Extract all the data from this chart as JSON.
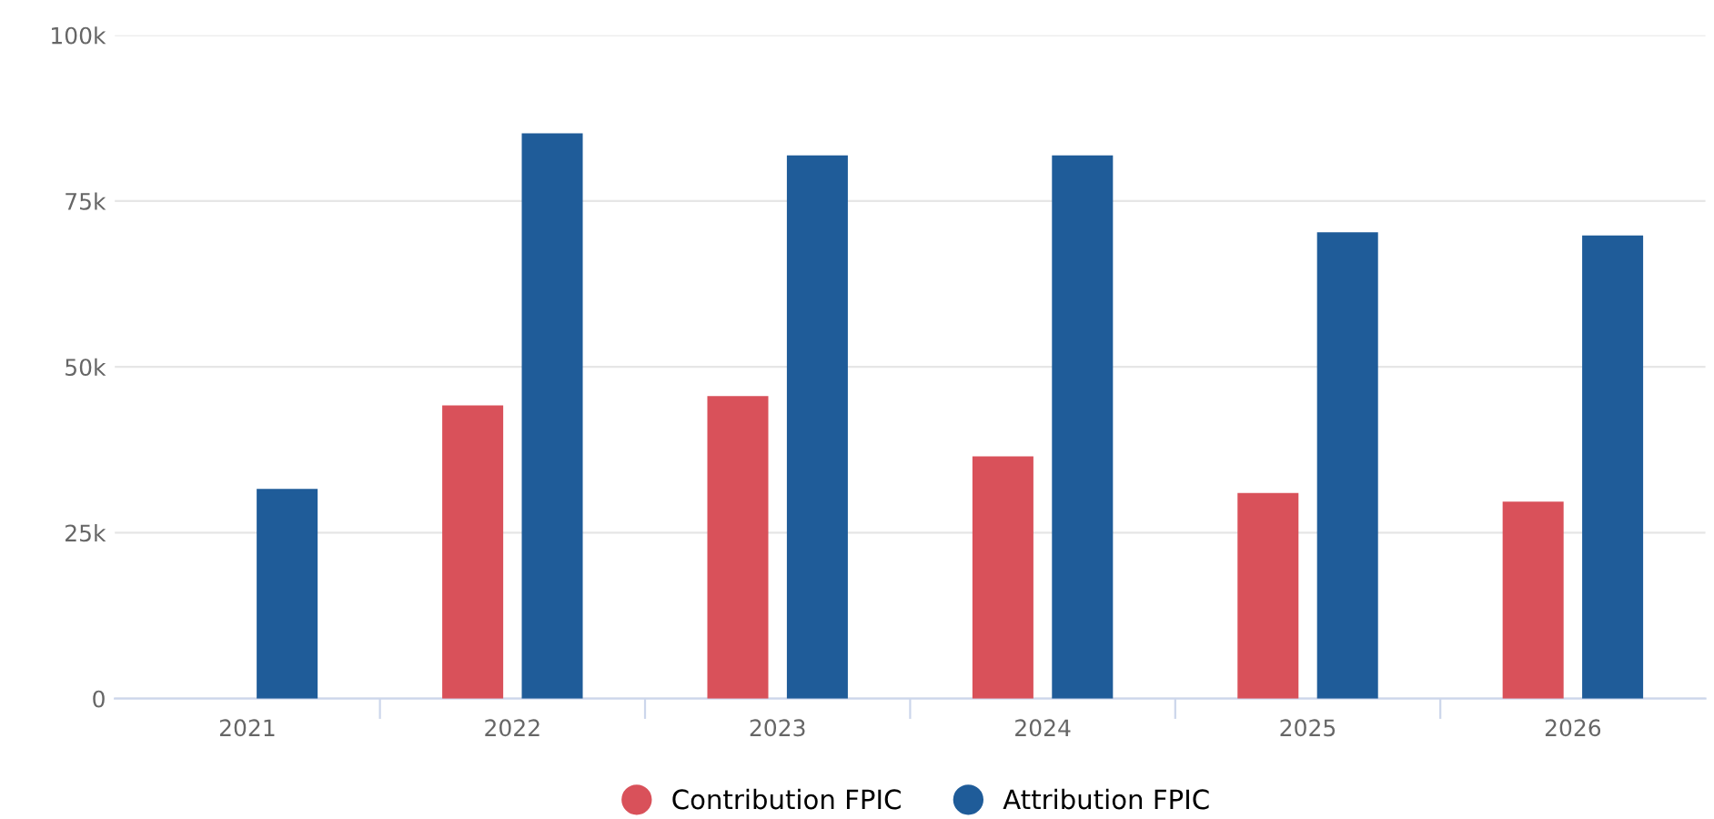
{
  "chart_data": {
    "type": "bar",
    "categories": [
      "2021",
      "2022",
      "2023",
      "2024",
      "2025",
      "2026"
    ],
    "series": [
      {
        "name": "Contribution FPIC",
        "color": "#d9515a",
        "values": [
          null,
          44.2,
          45.6,
          36.5,
          31.0,
          29.7
        ]
      },
      {
        "name": "Attribution FPIC",
        "color": "#1f5c99",
        "values": [
          31.6,
          85.2,
          81.9,
          81.9,
          70.3,
          69.8
        ]
      }
    ],
    "ylim": [
      0,
      100
    ],
    "yticks": [
      {
        "value": 0,
        "label": "0"
      },
      {
        "value": 25,
        "label": "25k"
      },
      {
        "value": 50,
        "label": "50k"
      },
      {
        "value": 75,
        "label": "75k"
      },
      {
        "value": 100,
        "label": "100k"
      }
    ],
    "grid": "y",
    "legend": "bottom"
  }
}
